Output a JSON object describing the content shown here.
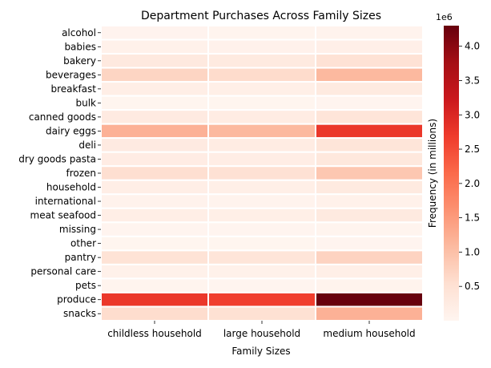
{
  "chart_data": {
    "type": "heatmap",
    "title": "Department Purchases Across Family Sizes",
    "xlabel": "Family Sizes",
    "ylabel": "",
    "colorbar_label": "Frequency (in millions)",
    "colorbar_offset_label": "1e6",
    "colormap": "Reds",
    "color_range": [
      0,
      4300000
    ],
    "colorbar_ticks": [
      0.5,
      1.0,
      1.5,
      2.0,
      2.5,
      3.0,
      3.5,
      4.0
    ],
    "colorbar_tick_labels": [
      "0.5",
      "1.0",
      "1.5",
      "2.0",
      "2.5",
      "3.0",
      "3.5",
      "4.0"
    ],
    "x_categories": [
      "childless household",
      "large household",
      "medium household"
    ],
    "y_categories": [
      "alcohol",
      "babies",
      "bakery",
      "beverages",
      "breakfast",
      "bulk",
      "canned goods",
      "dairy eggs",
      "deli",
      "dry goods pasta",
      "frozen",
      "household",
      "international",
      "meat seafood",
      "missing",
      "other",
      "pantry",
      "personal care",
      "pets",
      "produce",
      "snacks"
    ],
    "values": [
      [
        40000,
        35000,
        60000
      ],
      [
        100000,
        90000,
        150000
      ],
      [
        300000,
        280000,
        480000
      ],
      [
        700000,
        600000,
        1100000
      ],
      [
        180000,
        160000,
        280000
      ],
      [
        10000,
        10000,
        15000
      ],
      [
        270000,
        240000,
        420000
      ],
      [
        1200000,
        1100000,
        2750000
      ],
      [
        270000,
        240000,
        420000
      ],
      [
        220000,
        200000,
        340000
      ],
      [
        550000,
        500000,
        900000
      ],
      [
        180000,
        160000,
        280000
      ],
      [
        70000,
        60000,
        110000
      ],
      [
        180000,
        160000,
        280000
      ],
      [
        20000,
        18000,
        30000
      ],
      [
        10000,
        9000,
        15000
      ],
      [
        460000,
        420000,
        720000
      ],
      [
        110000,
        100000,
        160000
      ],
      [
        30000,
        25000,
        45000
      ],
      [
        2750000,
        2650000,
        4300000
      ],
      [
        580000,
        520000,
        1200000
      ]
    ]
  }
}
